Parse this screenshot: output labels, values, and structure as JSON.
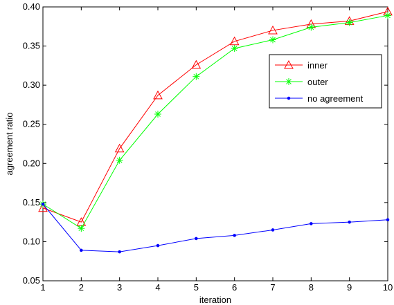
{
  "chart_data": {
    "type": "line",
    "title": "",
    "xlabel": "iteration",
    "ylabel": "agreement ratio",
    "xlim": [
      1,
      10
    ],
    "ylim": [
      0.05,
      0.4
    ],
    "x": [
      1,
      2,
      3,
      4,
      5,
      6,
      7,
      8,
      9,
      10
    ],
    "xticks": [
      "1",
      "2",
      "3",
      "4",
      "5",
      "6",
      "7",
      "8",
      "9",
      "10"
    ],
    "yticks": [
      "0.05",
      "0.10",
      "0.15",
      "0.20",
      "0.25",
      "0.30",
      "0.35",
      "0.40"
    ],
    "ytick_values": [
      0.05,
      0.1,
      0.15,
      0.2,
      0.25,
      0.3,
      0.35,
      0.4
    ],
    "grid": false,
    "legend_position": "upper-right",
    "series": [
      {
        "name": "inner",
        "color": "#ff0000",
        "marker": "triangle",
        "values": [
          0.143,
          0.125,
          0.219,
          0.287,
          0.326,
          0.356,
          0.37,
          0.378,
          0.382,
          0.394
        ]
      },
      {
        "name": "outer",
        "color": "#00ff00",
        "marker": "asterisk",
        "values": [
          0.148,
          0.117,
          0.204,
          0.263,
          0.311,
          0.347,
          0.358,
          0.374,
          0.38,
          0.389
        ]
      },
      {
        "name": "no agreement",
        "color": "#0000ff",
        "marker": "dot",
        "values": [
          0.148,
          0.089,
          0.087,
          0.095,
          0.104,
          0.108,
          0.115,
          0.123,
          0.125,
          0.128
        ]
      }
    ]
  }
}
